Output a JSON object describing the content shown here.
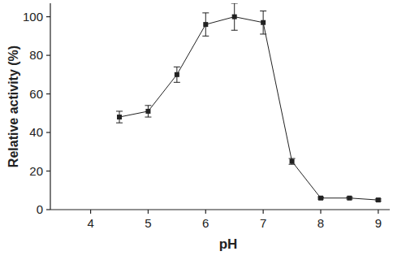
{
  "chart_data": {
    "type": "line",
    "x_label": "pH",
    "y_label": "Relative activity (%)",
    "x": [
      4.5,
      5,
      5.5,
      6,
      6.5,
      7,
      7.5,
      8,
      8.5,
      9
    ],
    "series": [
      {
        "name": null,
        "color": "#222222",
        "marker": "square",
        "line_style": "solid",
        "values": [
          48,
          51,
          70,
          96,
          100,
          97,
          25,
          6,
          6,
          5
        ],
        "errors": [
          3,
          3,
          4,
          6,
          7,
          6,
          1.5,
          0.5,
          0.5,
          0.5
        ]
      }
    ],
    "xlim": [
      3.3,
      9.2
    ],
    "xticks": [
      4,
      5,
      6,
      7,
      8,
      9
    ],
    "ylim": [
      0,
      107
    ],
    "yticks": [
      0,
      20,
      40,
      60,
      80,
      100
    ],
    "grid": false
  }
}
